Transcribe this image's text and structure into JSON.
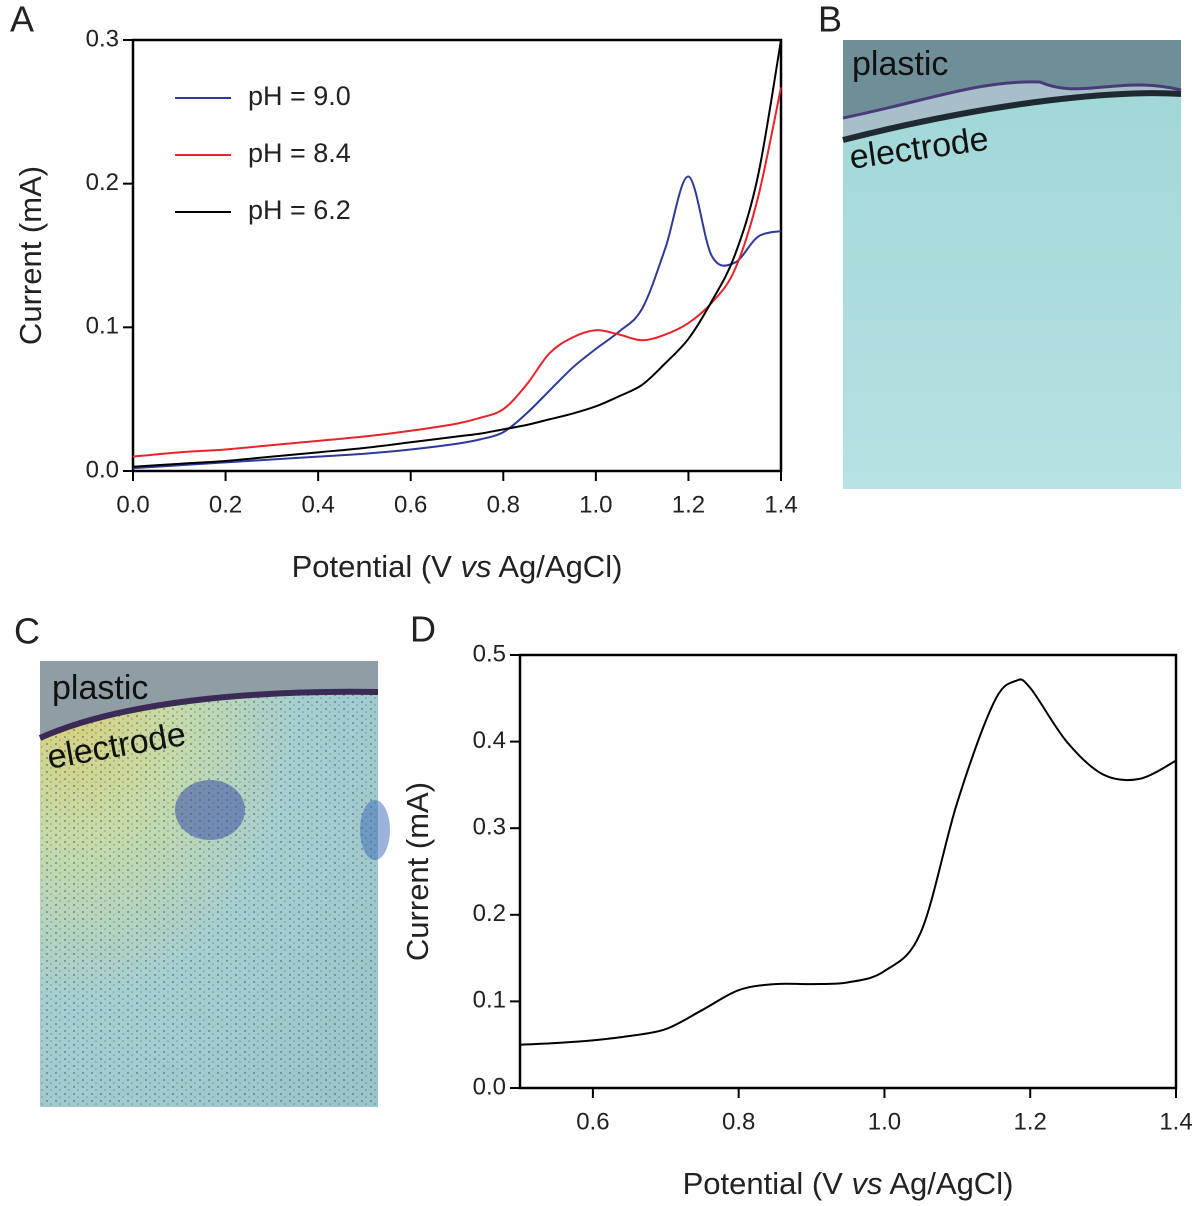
{
  "chart_data": [
    {
      "panel": "A",
      "type": "line",
      "ylabel": "Current (mA)",
      "xlabel": [
        "Potential (V ",
        "vs",
        " Ag/AgCl)"
      ],
      "x": [
        0,
        0.1,
        0.2,
        0.3,
        0.4,
        0.5,
        0.6,
        0.7,
        0.75,
        0.8,
        0.85,
        0.9,
        0.95,
        1.0,
        1.05,
        1.1,
        1.15,
        1.2,
        1.25,
        1.3,
        1.35,
        1.4
      ],
      "series": [
        {
          "name": "pH = 9.0",
          "color": "#2e3a9a",
          "values": [
            0.002,
            0.004,
            0.006,
            0.008,
            0.01,
            0.012,
            0.015,
            0.019,
            0.022,
            0.027,
            0.04,
            0.056,
            0.072,
            0.085,
            0.097,
            0.113,
            0.155,
            0.205,
            0.15,
            0.145,
            0.163,
            0.167
          ]
        },
        {
          "name": "pH = 8.4",
          "color": "#e8232a",
          "values": [
            0.01,
            0.013,
            0.015,
            0.018,
            0.021,
            0.024,
            0.028,
            0.033,
            0.037,
            0.043,
            0.06,
            0.082,
            0.093,
            0.098,
            0.095,
            0.091,
            0.095,
            0.103,
            0.117,
            0.14,
            0.19,
            0.267
          ]
        },
        {
          "name": "pH = 6.2",
          "color": "#000000",
          "values": [
            0.003,
            0.005,
            0.007,
            0.01,
            0.013,
            0.016,
            0.02,
            0.024,
            0.026,
            0.029,
            0.032,
            0.036,
            0.04,
            0.045,
            0.052,
            0.06,
            0.075,
            0.092,
            0.118,
            0.15,
            0.205,
            0.3
          ]
        }
      ],
      "xlim": [
        0,
        1.4
      ],
      "ylim": [
        0,
        0.3
      ],
      "xticks": [
        {
          "value": 0,
          "label": "0.0"
        },
        0.2,
        0.4,
        0.6,
        0.8,
        {
          "value": 1,
          "label": "1.0"
        },
        1.2,
        1.4
      ],
      "yticks": [
        {
          "value": 0,
          "label": "0.0"
        },
        0.1,
        0.2,
        0.3
      ],
      "legend": "upper left"
    },
    {
      "panel": "D",
      "type": "line",
      "ylabel": "Current (mA)",
      "xlabel": [
        "Potential (V ",
        "vs",
        " Ag/AgCl)"
      ],
      "x": [
        0.5,
        0.55,
        0.6,
        0.65,
        0.7,
        0.75,
        0.8,
        0.85,
        0.9,
        0.95,
        1.0,
        1.05,
        1.1,
        1.15,
        1.18,
        1.2,
        1.25,
        1.3,
        1.35,
        1.4
      ],
      "series": [
        {
          "color": "#000000",
          "values": [
            0.05,
            0.052,
            0.055,
            0.06,
            0.068,
            0.09,
            0.113,
            0.12,
            0.12,
            0.122,
            0.135,
            0.18,
            0.33,
            0.445,
            0.47,
            0.462,
            0.4,
            0.362,
            0.357,
            0.378
          ]
        }
      ],
      "xlim": [
        0.5,
        1.4
      ],
      "ylim": [
        0,
        0.5
      ],
      "xticks": [
        0.6,
        0.8,
        {
          "value": 1,
          "label": "1.0"
        },
        1.2,
        1.4
      ],
      "yticks": [
        {
          "value": 0,
          "label": "0.0"
        },
        0.1,
        0.2,
        0.3,
        0.4,
        0.5
      ]
    }
  ],
  "images": [
    {
      "panel": "B",
      "labels": [
        "plastic",
        "electrode"
      ]
    },
    {
      "panel": "C",
      "labels": [
        "plastic",
        "electrode"
      ]
    }
  ]
}
